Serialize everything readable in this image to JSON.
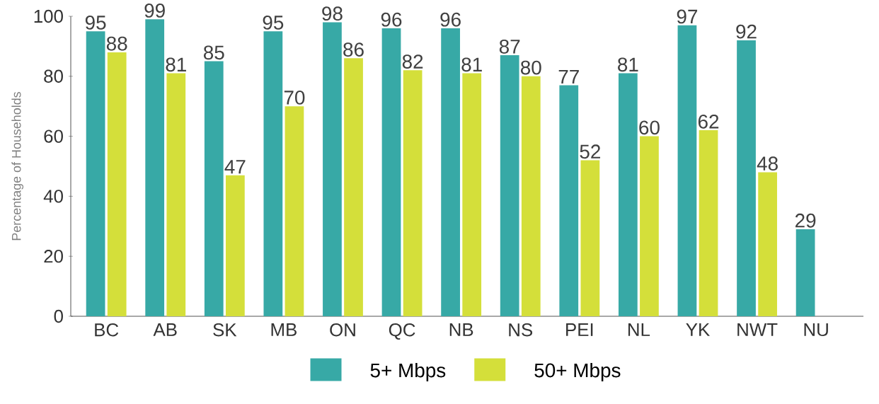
{
  "chart_data": {
    "type": "bar",
    "ylabel": "Percentage of Households",
    "categories": [
      "BC",
      "AB",
      "SK",
      "MB",
      "ON",
      "QC",
      "NB",
      "NS",
      "PEI",
      "NL",
      "YK",
      "NWT",
      "NU"
    ],
    "series": [
      {
        "name": "5+ Mbps",
        "color": "#37a9a6",
        "values": [
          95,
          99,
          85,
          95,
          98,
          96,
          96,
          87,
          77,
          81,
          97,
          92,
          29
        ]
      },
      {
        "name": "50+ Mbps",
        "color": "#d4df3a",
        "values": [
          88,
          81,
          47,
          70,
          86,
          82,
          81,
          80,
          52,
          60,
          62,
          48,
          null
        ]
      }
    ],
    "ylim": [
      0,
      100
    ],
    "yticks": [
      0,
      20,
      40,
      60,
      80,
      100
    ],
    "data_labels": true,
    "legend": "bottom",
    "grid": false
  }
}
